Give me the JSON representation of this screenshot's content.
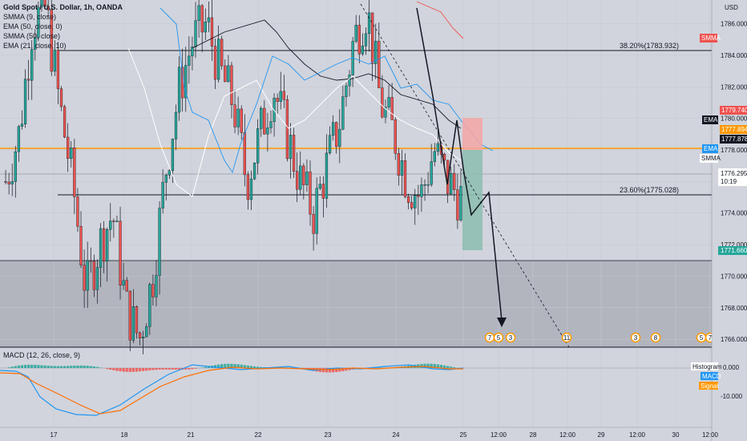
{
  "header": {
    "symbol": "Gold Spot / U.S. Dollar, 1h, OANDA",
    "indicators": [
      "SMMA (9, close)",
      "EMA (50, close, 0)",
      "SMMA (50, close)",
      "EMA (21, close, 10)"
    ],
    "currency": "USD"
  },
  "macd": {
    "title": "MACD (12, 26, close, 9)",
    "legend": [
      "Histogram",
      "MACD",
      "Signal"
    ],
    "ticks": [
      "0.000",
      "-10.000"
    ],
    "colors": {
      "macd": "#2196f3",
      "signal": "#ff6d00",
      "hist_pos": "#26a69a",
      "hist_neg": "#ef5350"
    }
  },
  "fib": {
    "upper": "38.20%(1783.932)",
    "lower": "23.60%(1775.028)"
  },
  "price_labels": {
    "smma": "SMMA",
    "ema_top_value": "1779.740",
    "ema_top": "EMA",
    "orange_value": "1777.894",
    "green_value": "1777.878",
    "ema_mid": "EMA",
    "smma_mid": "SMMA",
    "current_price": "1776.295",
    "countdown": "10:19",
    "target": "1771.660"
  },
  "event_markers": [
    "7",
    "5",
    "3",
    "11",
    "3",
    "8",
    "5",
    "7"
  ],
  "chart_data": {
    "type": "candlestick",
    "y_ticks": [
      1786.0,
      1784.0,
      1782.0,
      1780.0,
      1778.0,
      1776.0,
      1774.0,
      1772.0,
      1770.0,
      1768.0,
      1766.0
    ],
    "y_tick_labels": [
      "1786.000",
      "1784.000",
      "1782.000",
      "1780.000",
      "1778.000",
      "1776.000",
      "1774.000",
      "1772.000",
      "1770.000",
      "1768.000",
      "1766.000"
    ],
    "ylim": [
      1765.5,
      1787.5
    ],
    "x_labels": [
      "17",
      "18",
      "21",
      "22",
      "23",
      "24",
      "25",
      "12:00",
      "28",
      "12:00",
      "29",
      "12:00",
      "30",
      "12:00"
    ],
    "horizontal_levels": {
      "fib_38_2": 1783.932,
      "fib_23_6": 1775.028,
      "orange_line": 1777.894,
      "current": 1776.295,
      "zone_top": 1771.2
    },
    "candles_count": 140,
    "colors": {
      "up": "#26a69a",
      "down": "#ef5350",
      "orange": "#ff9800",
      "ema": "#2962ff"
    }
  }
}
